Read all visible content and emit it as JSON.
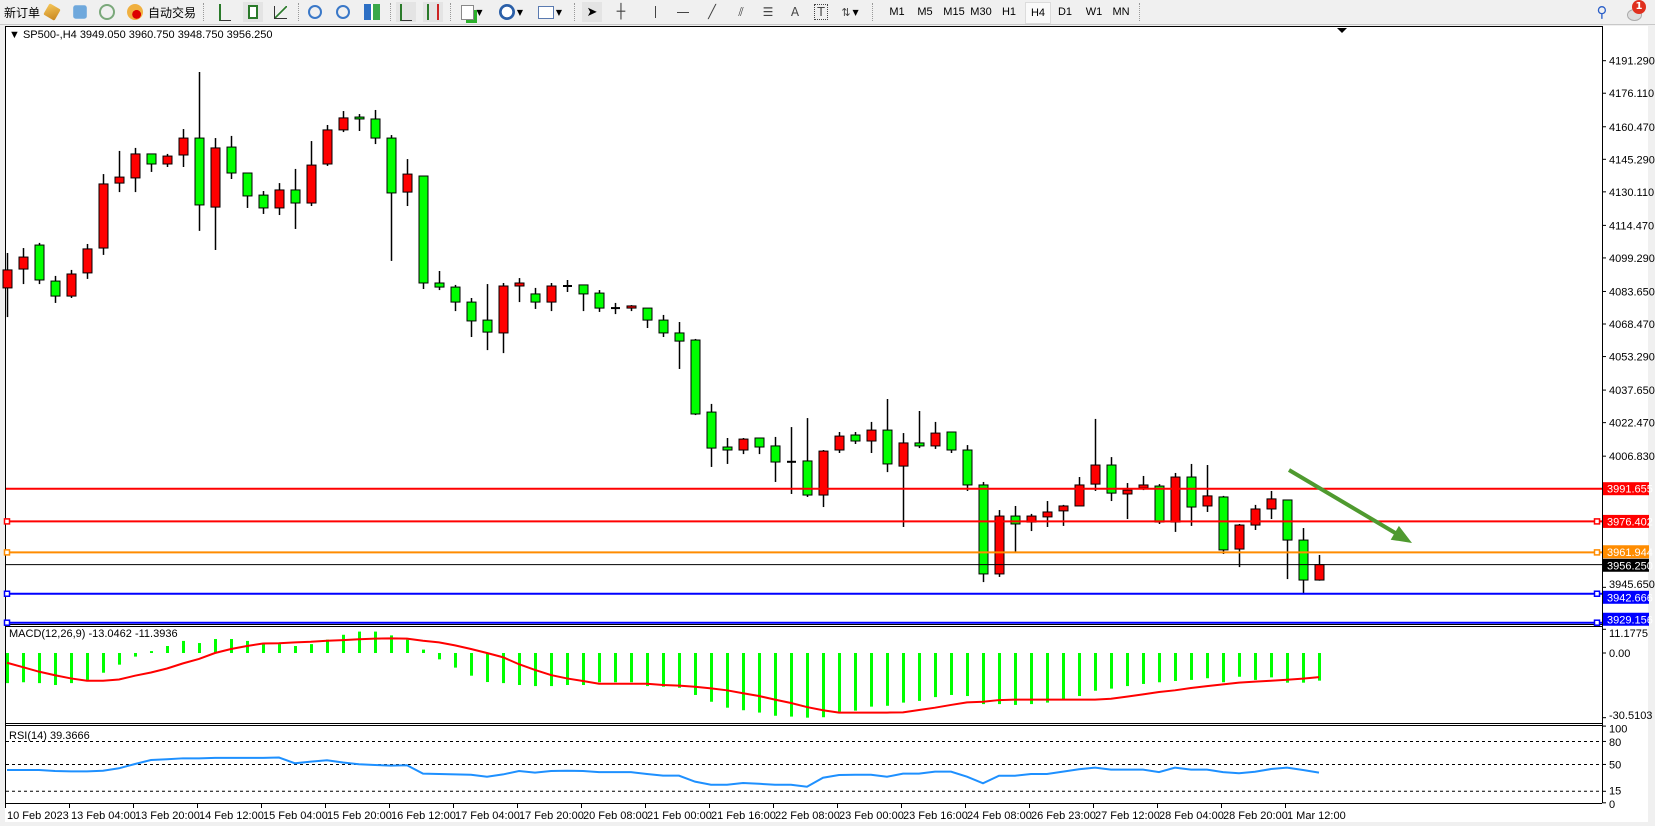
{
  "toolbar": {
    "new_order_label": "新订单",
    "auto_trade_label": "自动交易",
    "icons": [
      "market-watch-icon",
      "navigator-icon",
      "signals-icon",
      "auto-trading-icon",
      "bar-chart-icon",
      "candlestick-icon",
      "line-chart-icon",
      "zoom-in-icon",
      "zoom-out-icon",
      "tile-windows-icon",
      "chart-shift-icon",
      "auto-scroll-icon",
      "new-chart-icon",
      "periods-icon",
      "templates-icon",
      "cursor-icon",
      "crosshair-icon",
      "vertical-line-icon",
      "horizontal-line-icon",
      "trendline-icon",
      "fibonacci-icon",
      "fibonacci-fan-icon",
      "text-icon",
      "text-label-icon",
      "arrows-icon"
    ],
    "text_tool_label": "A",
    "label_tool_label": "T",
    "timeframes": [
      "M1",
      "M5",
      "M15",
      "M30",
      "H1",
      "H4",
      "D1",
      "W1",
      "MN"
    ],
    "active_timeframe": "H4",
    "notification_count": "1"
  },
  "chart": {
    "header": "SP500-,H4  3949.050 3960.750 3948.750 3956.250",
    "colors": {
      "bull": "#ff0000",
      "bear": "#00ff00",
      "arrow": "#4f9a2f",
      "rsi": "#1e90ff",
      "signal": "#ff0000",
      "histogram": "#00ff00"
    },
    "price_ticks": [
      "4191.290",
      "4176.110",
      "4160.470",
      "4145.290",
      "4130.110",
      "4114.470",
      "4099.290",
      "4083.650",
      "4068.470",
      "4053.290",
      "4037.650",
      "4022.470",
      "4006.830",
      "3945.650"
    ],
    "levels": [
      {
        "price": 3991.655,
        "label": "3991.655",
        "color": "#ff0000",
        "handles": false
      },
      {
        "price": 3976.402,
        "label": "3976.402",
        "color": "#ff0000",
        "handles": true
      },
      {
        "price": 3961.944,
        "label": "3961.944",
        "color": "#ff8c00",
        "handles": true
      },
      {
        "price": 3956.25,
        "label": "3956.250",
        "color": "#000000",
        "handles": false,
        "thin": true
      },
      {
        "price": 3942.666,
        "label": "3942.666",
        "color": "#0000ff",
        "handles": true
      },
      {
        "price": 3929.156,
        "label": "3929.156",
        "color": "#0000ff",
        "handles": true
      }
    ],
    "candles_ohlc": [
      [
        4085.3,
        4101.6,
        4071.7,
        4093.7
      ],
      [
        4094.1,
        4103.9,
        4087.1,
        4099.7
      ],
      [
        4105.3,
        4106.3,
        4087.1,
        4089.0
      ],
      [
        4088.5,
        4090.9,
        4078.3,
        4081.5
      ],
      [
        4081.5,
        4093.7,
        4080.6,
        4091.8
      ],
      [
        4092.3,
        4105.8,
        4089.5,
        4103.5
      ],
      [
        4103.9,
        4138.4,
        4100.7,
        4133.8
      ],
      [
        4134.2,
        4149.2,
        4130.0,
        4137.0
      ],
      [
        4136.6,
        4150.6,
        4130.0,
        4147.8
      ],
      [
        4147.8,
        4147.8,
        4139.4,
        4143.1
      ],
      [
        4143.1,
        4147.8,
        4141.7,
        4146.8
      ],
      [
        4147.3,
        4159.4,
        4141.7,
        4155.2
      ],
      [
        4155.2,
        4186.0,
        4111.9,
        4124.0
      ],
      [
        4123.0,
        4155.2,
        4103.0,
        4150.6
      ],
      [
        4151.0,
        4156.2,
        4136.1,
        4138.9
      ],
      [
        4138.9,
        4138.9,
        4122.6,
        4128.2
      ],
      [
        4128.6,
        4130.5,
        4119.8,
        4122.6
      ],
      [
        4122.6,
        4134.2,
        4119.3,
        4131.0
      ],
      [
        4131.0,
        4140.8,
        4112.8,
        4124.9
      ],
      [
        4124.9,
        4153.8,
        4123.5,
        4142.6
      ],
      [
        4143.1,
        4161.3,
        4142.2,
        4159.0
      ],
      [
        4159.0,
        4167.8,
        4158.0,
        4164.6
      ],
      [
        4165.0,
        4166.4,
        4158.5,
        4164.1
      ],
      [
        4164.1,
        4168.3,
        4152.4,
        4155.2
      ],
      [
        4155.2,
        4156.6,
        4097.9,
        4129.6
      ],
      [
        4130.0,
        4145.4,
        4123.5,
        4138.4
      ],
      [
        4137.5,
        4137.5,
        4084.8,
        4087.6
      ],
      [
        4087.6,
        4093.2,
        4084.3,
        4085.7
      ],
      [
        4085.7,
        4086.7,
        4074.5,
        4078.7
      ],
      [
        4078.7,
        4080.6,
        4062.4,
        4069.9
      ],
      [
        4070.3,
        4087.1,
        4056.3,
        4064.7
      ],
      [
        4064.3,
        4087.6,
        4054.9,
        4086.2
      ],
      [
        4086.2,
        4089.9,
        4078.7,
        4087.6
      ],
      [
        4082.5,
        4085.3,
        4075.5,
        4078.7
      ],
      [
        4078.7,
        4087.6,
        4074.5,
        4086.2
      ],
      [
        4086.2,
        4089.0,
        4083.4,
        4086.0
      ],
      [
        4086.7,
        4086.7,
        4074.5,
        4082.5
      ],
      [
        4082.9,
        4084.3,
        4074.1,
        4075.9
      ],
      [
        4075.9,
        4078.3,
        4073.1,
        4075.8
      ],
      [
        4075.9,
        4077.3,
        4074.5,
        4076.9
      ],
      [
        4075.9,
        4075.9,
        4066.6,
        4070.3
      ],
      [
        4070.3,
        4072.7,
        4062.4,
        4064.3
      ],
      [
        4064.3,
        4069.4,
        4047.5,
        4060.5
      ],
      [
        4061.0,
        4061.5,
        4026.0,
        4026.5
      ],
      [
        4027.4,
        4031.2,
        4001.8,
        4010.6
      ],
      [
        4011.1,
        4015.3,
        4003.2,
        4009.7
      ],
      [
        4009.7,
        4015.3,
        4007.8,
        4014.8
      ],
      [
        4015.3,
        4015.3,
        4007.8,
        4011.1
      ],
      [
        4011.6,
        4015.8,
        3994.8,
        4004.1
      ],
      [
        4004.1,
        4020.4,
        3989.2,
        4004.2
      ],
      [
        4004.6,
        4024.6,
        3987.8,
        3988.7
      ],
      [
        3988.7,
        4009.7,
        3983.1,
        4009.2
      ],
      [
        4009.7,
        4018.1,
        4008.3,
        4016.2
      ],
      [
        4016.7,
        4018.1,
        4012.5,
        4013.9
      ],
      [
        4013.9,
        4022.8,
        4008.3,
        4019.0
      ],
      [
        4019.0,
        4033.5,
        3999.4,
        4003.2
      ],
      [
        4002.2,
        4017.6,
        3973.8,
        4013.0
      ],
      [
        4013.0,
        4027.9,
        4010.6,
        4011.6
      ],
      [
        4011.6,
        4022.8,
        4010.2,
        4017.6
      ],
      [
        4018.1,
        4018.1,
        4008.3,
        4009.7
      ],
      [
        4009.7,
        4012.0,
        3990.6,
        3993.4
      ],
      [
        3993.4,
        3994.8,
        3948.1,
        3951.9
      ],
      [
        3951.9,
        3981.7,
        3950.5,
        3978.9
      ],
      [
        3978.9,
        3983.6,
        3962.1,
        3975.2
      ],
      [
        3976.1,
        3979.9,
        3971.9,
        3978.9
      ],
      [
        3978.5,
        3985.9,
        3973.8,
        3980.8
      ],
      [
        3981.3,
        3984.1,
        3974.3,
        3983.6
      ],
      [
        3983.6,
        3997.1,
        3983.6,
        3993.4
      ],
      [
        3993.8,
        4024.2,
        3990.6,
        4002.7
      ],
      [
        4002.7,
        4006.4,
        3985.9,
        3989.6
      ],
      [
        3989.2,
        3994.3,
        3977.5,
        3991.0
      ],
      [
        3992.0,
        3997.6,
        3991.0,
        3993.4
      ],
      [
        3992.9,
        3993.8,
        3975.2,
        3976.1
      ],
      [
        3976.1,
        3999.0,
        3971.5,
        3997.1
      ],
      [
        3997.1,
        4003.2,
        3974.3,
        3983.1
      ],
      [
        3983.6,
        4002.7,
        3980.8,
        3988.3
      ],
      [
        3987.8,
        3988.3,
        3961.2,
        3963.1
      ],
      [
        3963.5,
        3975.2,
        3955.1,
        3974.7
      ],
      [
        3974.7,
        3984.1,
        3972.4,
        3982.2
      ],
      [
        3982.2,
        3990.6,
        3977.5,
        3986.9
      ],
      [
        3986.4,
        3986.4,
        3949.5,
        3967.7
      ],
      [
        3967.7,
        3973.3,
        3943.0,
        3949.05
      ],
      [
        3949.05,
        3960.75,
        3948.75,
        3956.25
      ]
    ],
    "date_labels": [
      "10 Feb 2023",
      "13 Feb 04:00",
      "13 Feb 20:00",
      "14 Feb 12:00",
      "15 Feb 04:00",
      "15 Feb 20:00",
      "16 Feb 12:00",
      "17 Feb 04:00",
      "17 Feb 20:00",
      "20 Feb 08:00",
      "21 Feb 00:00",
      "21 Feb 16:00",
      "22 Feb 08:00",
      "23 Feb 00:00",
      "23 Feb 16:00",
      "24 Feb 08:00",
      "26 Feb 23:00",
      "27 Feb 12:00",
      "28 Feb 04:00",
      "28 Feb 20:00",
      "1 Mar 12:00"
    ],
    "trend_arrow": "down-right"
  },
  "macd": {
    "label": "MACD(12,26,9) -13.0462 -11.3936",
    "ticks": [
      "11.1775",
      "0.00",
      "-30.5103"
    ],
    "histogram": [
      -14.2,
      -13.8,
      -14.2,
      -15.1,
      -14.2,
      -12.7,
      -9.3,
      -5.5,
      -1.7,
      0.9,
      3.3,
      5.7,
      4.7,
      6.6,
      6.6,
      5.7,
      4.6,
      4.2,
      3.3,
      4.2,
      6.3,
      8.6,
      10.1,
      10.1,
      8.3,
      6.3,
      1.6,
      -3.0,
      -6.9,
      -10.7,
      -13.7,
      -14.2,
      -15.1,
      -15.6,
      -15.6,
      -15.1,
      -15.1,
      -13.8,
      -13.8,
      -13.8,
      -15.6,
      -15.9,
      -16.4,
      -19.8,
      -23.0,
      -25.8,
      -27.0,
      -28.1,
      -29.6,
      -30.0,
      -30.5,
      -30.3,
      -27.7,
      -27.2,
      -25.3,
      -24.9,
      -23.4,
      -22.6,
      -20.8,
      -19.8,
      -20.3,
      -24.1,
      -24.1,
      -24.5,
      -24.1,
      -23.4,
      -21.7,
      -20.3,
      -17.8,
      -16.8,
      -15.6,
      -14.6,
      -13.8,
      -13.2,
      -12.7,
      -11.9,
      -13.8,
      -11.2,
      -12.7,
      -11.5,
      -14.0,
      -14.0,
      -13.0462
    ],
    "signal": [
      -4.6,
      -6.7,
      -8.8,
      -10.5,
      -12.0,
      -13.1,
      -13.1,
      -12.5,
      -10.7,
      -9.2,
      -7.3,
      -4.9,
      -2.8,
      0.0,
      1.9,
      3.3,
      4.5,
      4.6,
      5.0,
      5.3,
      5.8,
      6.1,
      6.5,
      6.8,
      6.9,
      6.8,
      5.8,
      5.0,
      3.6,
      1.9,
      0.0,
      -2.0,
      -5.3,
      -8.0,
      -10.4,
      -12.0,
      -13.2,
      -14.5,
      -14.5,
      -14.5,
      -14.5,
      -15.1,
      -15.4,
      -15.9,
      -16.7,
      -17.6,
      -19.0,
      -20.3,
      -22.0,
      -23.6,
      -25.5,
      -27.0,
      -28.1,
      -28.1,
      -28.1,
      -28.1,
      -28.0,
      -26.9,
      -25.8,
      -24.5,
      -23.3,
      -23.0,
      -22.2,
      -22.0,
      -22.0,
      -22.0,
      -22.0,
      -22.0,
      -22.0,
      -21.6,
      -20.6,
      -19.5,
      -18.4,
      -17.6,
      -16.5,
      -15.6,
      -14.8,
      -14.0,
      -13.5,
      -13.1,
      -12.6,
      -12.1,
      -11.3936
    ]
  },
  "rsi": {
    "label": "RSI(14) 39.3666",
    "ticks": [
      "100",
      "80",
      "50",
      "15",
      "0"
    ],
    "levels": [
      80,
      50,
      15
    ],
    "values": [
      42.8,
      42.8,
      42.8,
      41.5,
      41.0,
      41.0,
      41.8,
      45.0,
      50.6,
      55.8,
      56.7,
      58.0,
      58.0,
      58.5,
      58.5,
      58.5,
      58.5,
      59.0,
      51.5,
      53.7,
      55.4,
      52.5,
      50.2,
      49.3,
      48.5,
      49.0,
      38.0,
      37.5,
      37.0,
      36.5,
      34.0,
      37.0,
      41.4,
      39.3,
      41.4,
      41.8,
      41.4,
      40.0,
      40.0,
      40.0,
      37.5,
      35.4,
      35.4,
      27.6,
      23.6,
      23.6,
      25.8,
      24.8,
      23.6,
      23.6,
      21.0,
      32.7,
      36.2,
      36.6,
      36.6,
      34.0,
      38.0,
      38.0,
      40.6,
      40.6,
      34.0,
      25.4,
      35.3,
      35.3,
      37.5,
      37.5,
      40.6,
      43.7,
      45.8,
      43.3,
      43.3,
      43.3,
      40.0,
      45.8,
      43.3,
      43.3,
      40.0,
      38.5,
      40.5,
      44.0,
      45.8,
      42.8,
      39.3666
    ]
  }
}
